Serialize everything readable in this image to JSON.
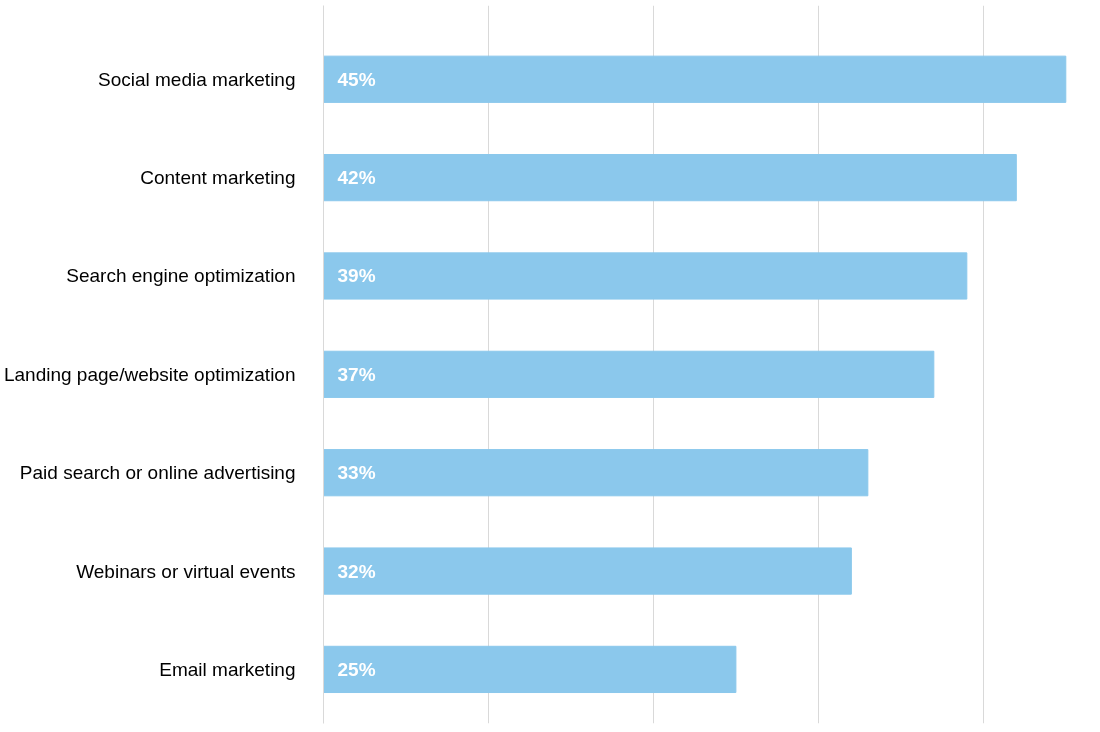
{
  "chart_data": {
    "type": "bar",
    "orientation": "horizontal",
    "categories": [
      "Social media marketing",
      "Content marketing",
      "Search engine optimization",
      "Landing page/website optimization",
      "Paid search or online advertising",
      "Webinars or virtual events",
      "Email marketing"
    ],
    "values": [
      45,
      42,
      39,
      37,
      33,
      32,
      25
    ],
    "value_labels": [
      "45%",
      "42%",
      "39%",
      "37%",
      "33%",
      "32%",
      "25%"
    ],
    "color": "#8bc8ec",
    "xticks": [
      {
        "value": 0,
        "label": null
      },
      {
        "value": 10,
        "label": null
      },
      {
        "value": 20,
        "label": null
      },
      {
        "value": 30,
        "label": null
      },
      {
        "value": 40,
        "label": null
      }
    ],
    "grid": "x",
    "tick_labels": "y"
  }
}
